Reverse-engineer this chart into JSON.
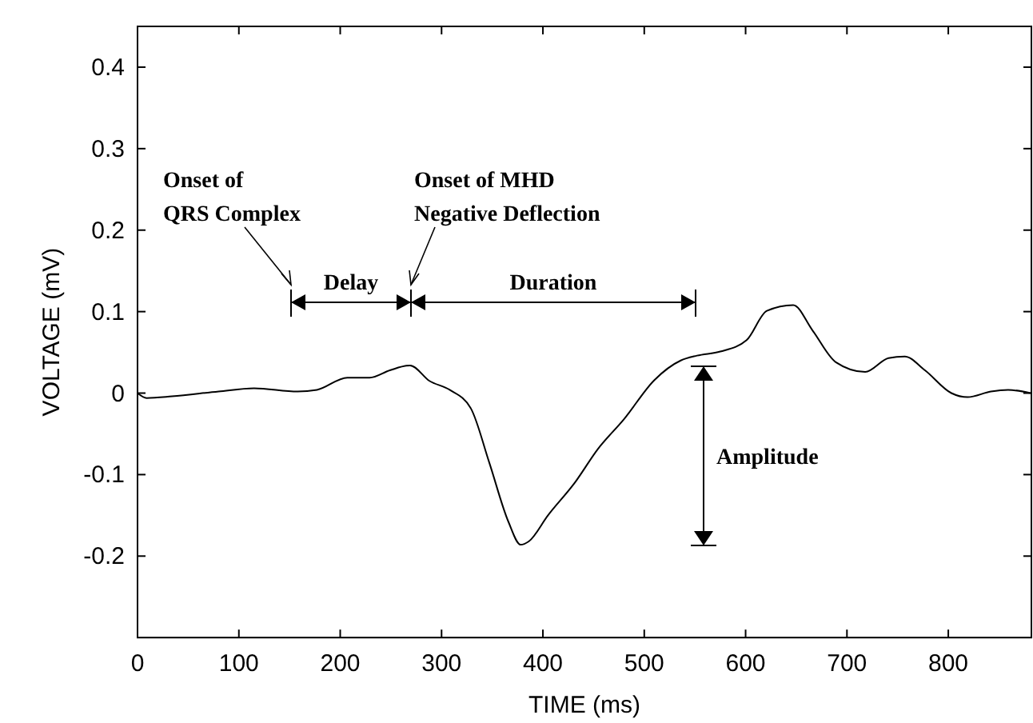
{
  "chart_data": {
    "type": "line",
    "xlabel": "TIME (ms)",
    "ylabel": "VOLTAGE (mV)",
    "xlim": [
      0,
      882
    ],
    "ylim": [
      -0.3,
      0.45
    ],
    "xticks": [
      0,
      100,
      200,
      300,
      400,
      500,
      600,
      700,
      800
    ],
    "yticks": [
      -0.2,
      -0.1,
      0,
      0.1,
      0.2,
      0.3,
      0.4
    ],
    "grid": false,
    "marker": "none",
    "line_style": "solid",
    "series": [
      {
        "color": "#000000",
        "x": [
          0,
          9,
          34,
          80,
          115,
          158,
          177,
          207,
          229,
          249,
          269,
          288,
          308,
          329,
          347,
          366,
          378,
          386,
          405,
          432,
          454,
          480,
          510,
          536,
          552,
          575,
          601,
          621,
          647,
          666,
          689,
          718,
          741,
          757,
          777,
          803,
          819,
          842,
          859,
          881
        ],
        "values": [
          0,
          -0.006,
          -0.004,
          0.002,
          0.006,
          0.002,
          0.004,
          0.019,
          0.019,
          0.028,
          0.034,
          0.015,
          0.004,
          -0.019,
          -0.085,
          -0.158,
          -0.186,
          -0.182,
          -0.15,
          -0.109,
          -0.069,
          -0.032,
          0.016,
          0.04,
          0.046,
          0.051,
          0.065,
          0.101,
          0.108,
          0.077,
          0.038,
          0.026,
          0.043,
          0.045,
          0.028,
          0,
          -0.005,
          0.002,
          0.004,
          0
        ]
      }
    ],
    "annotations": [
      "Onset of\nQRS Complex",
      "Onset of MHD\nNegative Deflection",
      "Delay",
      "Duration",
      "Amplitude"
    ]
  }
}
